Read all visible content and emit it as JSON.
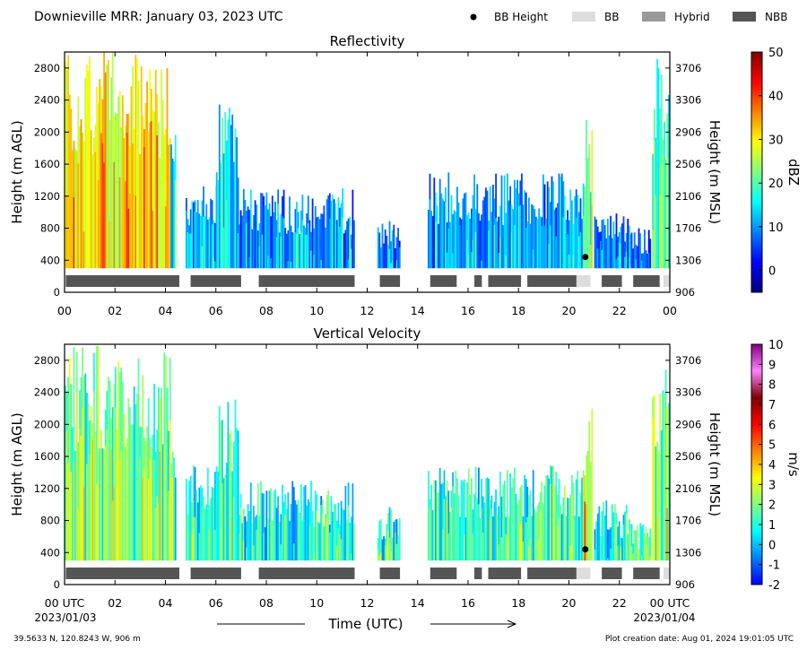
{
  "header": {
    "title": "Downieville MRR:  January 03, 2023 UTC"
  },
  "legend": [
    {
      "label": "BB Height",
      "kind": "dot",
      "color": "#000000"
    },
    {
      "label": "BB",
      "kind": "box",
      "color": "#dddddd"
    },
    {
      "label": "Hybrid",
      "kind": "box",
      "color": "#999999"
    },
    {
      "label": "NBB",
      "kind": "box",
      "color": "#555555"
    }
  ],
  "colors": {
    "bb": "#dddddd",
    "hybrid": "#999999",
    "nbb": "#555555",
    "bb_height": "#000000"
  },
  "chart_data": [
    {
      "type": "heatmap",
      "title": "Reflectivity",
      "ylabel": "Height (m AGL)",
      "ylabel_right": "Height (m MSL)",
      "yticks": [
        "0",
        "400",
        "800",
        "1200",
        "1600",
        "2000",
        "2400",
        "2800"
      ],
      "yticks_right": [
        "906",
        "1306",
        "1706",
        "2106",
        "2506",
        "2906",
        "3306",
        "3706"
      ],
      "xticks": [
        "00",
        "02",
        "04",
        "06",
        "08",
        "10",
        "12",
        "14",
        "16",
        "18",
        "20",
        "22",
        "00"
      ],
      "xlim": [
        0,
        24
      ],
      "ylim": [
        0,
        3000
      ],
      "colorbar": {
        "label": "dBZ",
        "range": [
          -5,
          50
        ],
        "ticks": [
          "0",
          "10",
          "20",
          "30",
          "40",
          "50"
        ],
        "stops": [
          "#000080",
          "#0000ff",
          "#0080ff",
          "#00ffff",
          "#80ff80",
          "#ffff00",
          "#ff8000",
          "#ff0000",
          "#800000"
        ]
      },
      "field": {
        "top_height": 3000,
        "segments": [
          {
            "start": 0.0,
            "end": 4.2,
            "top": 3000,
            "level": 0.62
          },
          {
            "start": 4.2,
            "end": 4.4,
            "top": 2400,
            "level": 0.35
          },
          {
            "start": 4.8,
            "end": 6.0,
            "top": 1500,
            "level": 0.28
          },
          {
            "start": 6.0,
            "end": 6.9,
            "top": 2350,
            "level": 0.34
          },
          {
            "start": 6.9,
            "end": 11.5,
            "top": 1300,
            "level": 0.26
          },
          {
            "start": 12.4,
            "end": 13.3,
            "top": 1000,
            "level": 0.24
          },
          {
            "start": 14.4,
            "end": 20.6,
            "top": 1500,
            "level": 0.27
          },
          {
            "start": 20.6,
            "end": 20.9,
            "top": 2200,
            "level": 0.45
          },
          {
            "start": 21.0,
            "end": 22.4,
            "top": 1050,
            "level": 0.25
          },
          {
            "start": 22.4,
            "end": 23.2,
            "top": 800,
            "level": 0.22
          },
          {
            "start": 23.3,
            "end": 24.0,
            "top": 3000,
            "level": 0.4
          }
        ]
      },
      "classification": [
        {
          "start": 0.05,
          "end": 4.55,
          "class": "NBB"
        },
        {
          "start": 5.0,
          "end": 7.0,
          "class": "NBB"
        },
        {
          "start": 7.7,
          "end": 11.5,
          "class": "NBB"
        },
        {
          "start": 12.5,
          "end": 13.3,
          "class": "NBB"
        },
        {
          "start": 14.5,
          "end": 15.55,
          "class": "NBB"
        },
        {
          "start": 16.25,
          "end": 16.55,
          "class": "NBB"
        },
        {
          "start": 16.8,
          "end": 18.1,
          "class": "NBB"
        },
        {
          "start": 18.35,
          "end": 20.3,
          "class": "NBB"
        },
        {
          "start": 20.3,
          "end": 20.85,
          "class": "BB"
        },
        {
          "start": 21.3,
          "end": 22.1,
          "class": "NBB"
        },
        {
          "start": 22.55,
          "end": 23.6,
          "class": "NBB"
        },
        {
          "start": 23.75,
          "end": 24.0,
          "class": "BB"
        }
      ],
      "bb_height_points": [
        {
          "time": 20.65,
          "height": 440
        }
      ]
    },
    {
      "type": "heatmap",
      "title": "Vertical Velocity",
      "ylabel": "Height (m AGL)",
      "ylabel_right": "Height (m MSL)",
      "yticks": [
        "0",
        "400",
        "800",
        "1200",
        "1600",
        "2000",
        "2400",
        "2800"
      ],
      "yticks_right": [
        "906",
        "1306",
        "1706",
        "2106",
        "2506",
        "2906",
        "3306",
        "3706"
      ],
      "xticks": [
        "00 UTC",
        "02",
        "04",
        "06",
        "08",
        "10",
        "12",
        "14",
        "16",
        "18",
        "20",
        "22",
        "00 UTC"
      ],
      "xtick_dates": [
        "2023/01/03",
        "2023/01/04"
      ],
      "xlabel": "Time (UTC)",
      "xlim": [
        0,
        24
      ],
      "ylim": [
        0,
        3000
      ],
      "colorbar": {
        "label": "m/s",
        "range": [
          -2,
          10
        ],
        "ticks": [
          "-2",
          "-1",
          "0",
          "1",
          "2",
          "3",
          "4",
          "5",
          "6",
          "7",
          "8",
          "9",
          "10"
        ],
        "stops": [
          "#0000ff",
          "#0080ff",
          "#00ffff",
          "#80ff80",
          "#ffff00",
          "#ff8000",
          "#ff0000",
          "#800000",
          "#ff80ff",
          "#800080"
        ]
      },
      "field": {
        "top_height": 3000,
        "segments": [
          {
            "start": 0.0,
            "end": 4.2,
            "top": 3000,
            "level": 0.3
          },
          {
            "start": 4.2,
            "end": 4.4,
            "top": 2400,
            "level": 0.28
          },
          {
            "start": 4.8,
            "end": 6.0,
            "top": 1500,
            "level": 0.24
          },
          {
            "start": 6.0,
            "end": 6.9,
            "top": 2350,
            "level": 0.26
          },
          {
            "start": 6.9,
            "end": 11.5,
            "top": 1300,
            "level": 0.23
          },
          {
            "start": 12.4,
            "end": 13.3,
            "top": 1000,
            "level": 0.2
          },
          {
            "start": 14.4,
            "end": 20.6,
            "top": 1500,
            "level": 0.24
          },
          {
            "start": 20.6,
            "end": 20.9,
            "top": 2200,
            "level": 0.42
          },
          {
            "start": 21.0,
            "end": 22.4,
            "top": 1050,
            "level": 0.22
          },
          {
            "start": 22.4,
            "end": 23.2,
            "top": 800,
            "level": 0.3
          },
          {
            "start": 23.3,
            "end": 24.0,
            "top": 3000,
            "level": 0.33
          }
        ]
      },
      "classification": [
        {
          "start": 0.05,
          "end": 4.55,
          "class": "NBB"
        },
        {
          "start": 5.0,
          "end": 7.0,
          "class": "NBB"
        },
        {
          "start": 7.7,
          "end": 11.5,
          "class": "NBB"
        },
        {
          "start": 12.5,
          "end": 13.3,
          "class": "NBB"
        },
        {
          "start": 14.5,
          "end": 15.55,
          "class": "NBB"
        },
        {
          "start": 16.25,
          "end": 16.55,
          "class": "NBB"
        },
        {
          "start": 16.8,
          "end": 18.1,
          "class": "NBB"
        },
        {
          "start": 18.35,
          "end": 20.3,
          "class": "NBB"
        },
        {
          "start": 20.3,
          "end": 20.85,
          "class": "BB"
        },
        {
          "start": 21.3,
          "end": 22.1,
          "class": "NBB"
        },
        {
          "start": 22.55,
          "end": 23.6,
          "class": "NBB"
        },
        {
          "start": 23.75,
          "end": 24.0,
          "class": "BB"
        }
      ],
      "bb_height_points": [
        {
          "time": 20.65,
          "height": 440
        }
      ]
    }
  ],
  "footer": {
    "location": "39.5633 N, 120.8243 W, 906 m",
    "creation": "Plot creation date: Aug 01, 2024 19:01:05 UTC"
  }
}
